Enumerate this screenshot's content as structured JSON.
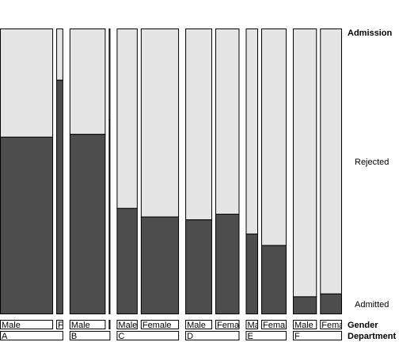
{
  "chart_data": {
    "type": "mosaic",
    "response": {
      "name": "Admission",
      "levels": [
        "Rejected",
        "Admitted"
      ],
      "colors": {
        "Rejected": "#e5e5e5",
        "Admitted": "#4d4d4d"
      }
    },
    "factors": [
      {
        "name": "Gender",
        "levels": [
          "Male",
          "Female"
        ]
      },
      {
        "name": "Department",
        "levels": [
          "A",
          "B",
          "C",
          "D",
          "E",
          "F"
        ]
      }
    ],
    "cells": [
      {
        "department": "A",
        "gender": "Male",
        "department_label": "A",
        "gender_label": "Male",
        "count": 825,
        "admitted_fraction": 0.62
      },
      {
        "department": "A",
        "gender": "Female",
        "department_label": "",
        "gender_label": "F",
        "count": 108,
        "admitted_fraction": 0.82
      },
      {
        "department": "B",
        "gender": "Male",
        "department_label": "B",
        "gender_label": "Male",
        "count": 560,
        "admitted_fraction": 0.63
      },
      {
        "department": "B",
        "gender": "Female",
        "department_label": "",
        "gender_label": "",
        "count": 25,
        "admitted_fraction": 0.68
      },
      {
        "department": "C",
        "gender": "Male",
        "department_label": "C",
        "gender_label": "Male",
        "count": 325,
        "admitted_fraction": 0.37
      },
      {
        "department": "C",
        "gender": "Female",
        "department_label": "",
        "gender_label": "Female",
        "count": 593,
        "admitted_fraction": 0.34
      },
      {
        "department": "D",
        "gender": "Male",
        "department_label": "D",
        "gender_label": "Male",
        "count": 417,
        "admitted_fraction": 0.33
      },
      {
        "department": "D",
        "gender": "Female",
        "department_label": "",
        "gender_label": "Fema",
        "count": 375,
        "admitted_fraction": 0.35
      },
      {
        "department": "E",
        "gender": "Male",
        "department_label": "E",
        "gender_label": "Ma",
        "count": 191,
        "admitted_fraction": 0.28
      },
      {
        "department": "E",
        "gender": "Female",
        "department_label": "",
        "gender_label": "Fema",
        "count": 393,
        "admitted_fraction": 0.24
      },
      {
        "department": "F",
        "gender": "Male",
        "department_label": "F",
        "gender_label": "Male",
        "count": 373,
        "admitted_fraction": 0.06
      },
      {
        "department": "F",
        "gender": "Female",
        "department_label": "",
        "gender_label": "Fema",
        "count": 341,
        "admitted_fraction": 0.07
      }
    ],
    "labels": {
      "response_title": "Admission",
      "rejected": "Rejected",
      "admitted": "Admitted",
      "gender_title": "Gender",
      "department_title": "Department"
    },
    "legend_position": "right",
    "grid": false
  }
}
